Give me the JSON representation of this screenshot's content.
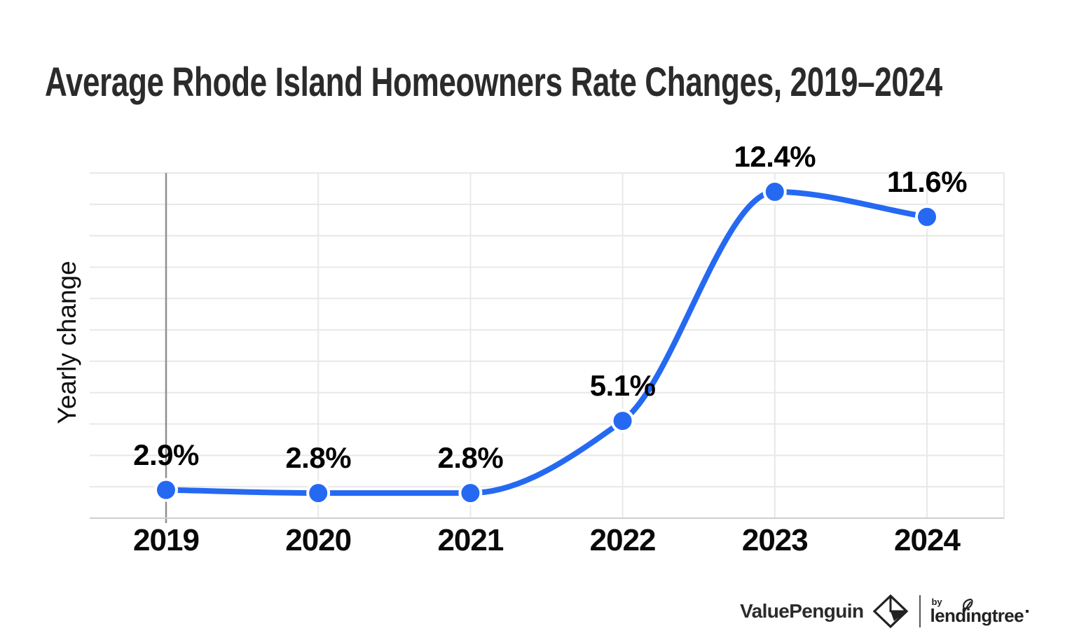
{
  "title": "Average Rhode Island Homeowners Rate Changes, 2019–2024",
  "chart_data": {
    "type": "line",
    "title": "Average Rhode Island Homeowners Rate Changes, 2019–2024",
    "categories": [
      "2019",
      "2020",
      "2021",
      "2022",
      "2023",
      "2024"
    ],
    "series": [
      {
        "name": "Yearly change",
        "values": [
          2.9,
          2.8,
          2.8,
          5.1,
          12.4,
          11.6
        ]
      }
    ],
    "point_labels": [
      "2.9%",
      "2.8%",
      "2.8%",
      "5.1%",
      "12.4%",
      "11.6%"
    ],
    "xlabel": "",
    "ylabel": "Yearly change",
    "ylim": [
      2,
      13
    ],
    "grid": true,
    "smooth": true,
    "legend_position": "none",
    "line_color": "#2569f2",
    "marker_color": "#2569f2",
    "gridline_color": "#e8e8e8",
    "axis_line_color": "#8f8f8f",
    "baseline_color": "#cfcfcf",
    "label_color": "#000000"
  },
  "footer": {
    "brand": "ValuePenguin",
    "penguin_icon": "valuepenguin-diamond-logo",
    "by_label": "by",
    "partner": "lendingtree"
  }
}
